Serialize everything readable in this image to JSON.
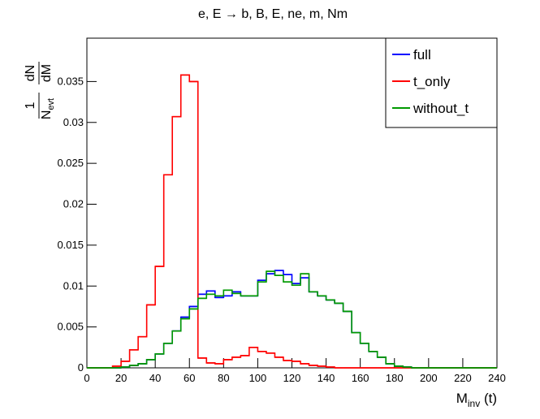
{
  "chart_data": {
    "type": "histogram",
    "title": "e, E → b, B, E, ne, m, Nm",
    "xlabel": {
      "main": "M",
      "sub": "inv",
      "rest": " (t)"
    },
    "ylabel": {
      "num1": "1",
      "den1": "N",
      "den1_sub": "evt",
      "num2": "dN",
      "den2": "dM"
    },
    "bins": [
      0,
      5,
      10,
      15,
      20,
      25,
      30,
      35,
      40,
      45,
      50,
      55,
      60,
      65,
      70,
      75,
      80,
      85,
      90,
      95,
      100,
      105,
      110,
      115,
      120,
      125,
      130,
      135,
      140,
      145,
      150,
      155,
      160,
      165,
      170,
      175,
      180,
      185,
      190,
      195,
      200,
      205,
      210,
      215,
      220,
      225,
      230,
      235,
      240
    ],
    "series": [
      {
        "name": "full",
        "color": "#0000ff",
        "values": [
          0,
          0,
          0,
          0,
          0.0001,
          0.0003,
          0.0005,
          0.001,
          0.0017,
          0.003,
          0.0045,
          0.0062,
          0.0075,
          0.009,
          0.0094,
          0.0086,
          0.0088,
          0.0093,
          0.0088,
          0.0088,
          0.0107,
          0.0115,
          0.0119,
          0.0114,
          0.0103,
          0.011,
          0.0093,
          0.0088,
          0.0083,
          0.0079,
          0.0069,
          0.0043,
          0.003,
          0.002,
          0.0013,
          0.0005,
          0.0002,
          0.0001,
          0,
          0,
          0,
          0,
          0,
          0,
          0,
          0,
          0,
          0
        ]
      },
      {
        "name": "t_only",
        "color": "#ff0000",
        "values": [
          0,
          0,
          0,
          0.0002,
          0.0008,
          0.0022,
          0.0038,
          0.0077,
          0.0124,
          0.0236,
          0.0307,
          0.0358,
          0.035,
          0.0012,
          0.0006,
          0.0005,
          0.001,
          0.0013,
          0.0015,
          0.0025,
          0.002,
          0.0018,
          0.0013,
          0.0009,
          0.0008,
          0.0005,
          0.0003,
          0.0002,
          0.0001,
          0,
          0,
          0,
          0,
          0,
          0,
          0,
          0,
          0,
          0,
          0,
          0,
          0,
          0,
          0,
          0,
          0,
          0,
          0
        ]
      },
      {
        "name": "without_t",
        "color": "#009900",
        "values": [
          0,
          0,
          0,
          0,
          0.0001,
          0.0003,
          0.0005,
          0.001,
          0.0017,
          0.003,
          0.0045,
          0.006,
          0.0072,
          0.0085,
          0.009,
          0.0088,
          0.0095,
          0.0091,
          0.0088,
          0.0088,
          0.0105,
          0.0118,
          0.0113,
          0.0105,
          0.0101,
          0.0115,
          0.0093,
          0.0088,
          0.0083,
          0.0079,
          0.0069,
          0.0043,
          0.003,
          0.002,
          0.0013,
          0.0005,
          0.0002,
          0.0001,
          0,
          0,
          0,
          0,
          0,
          0,
          0,
          0,
          0,
          0
        ]
      }
    ],
    "xlim": [
      0,
      240
    ],
    "ylim": [
      0,
      0.0403
    ],
    "xticks": [
      0,
      20,
      40,
      60,
      80,
      100,
      120,
      140,
      160,
      180,
      200,
      220,
      240
    ],
    "yticks": [
      0,
      0.005,
      0.01,
      0.015,
      0.02,
      0.025,
      0.03,
      0.035
    ],
    "legend": "top-right"
  }
}
